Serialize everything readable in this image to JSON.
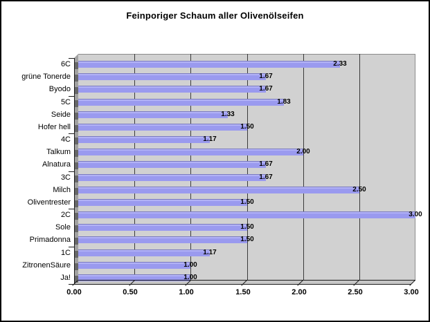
{
  "chart_data": {
    "type": "bar",
    "orientation": "horizontal",
    "style": "3d-excel",
    "title": "Feinporiger Schaum aller Olivenölseifen",
    "categories": [
      "6C",
      "grüne Tonerde",
      "Byodo",
      "5C",
      "Seide",
      "Hofer hell",
      "4C",
      "Talkum",
      "Alnatura",
      "3C",
      "Milch",
      "Oliventrester",
      "2C",
      "Sole",
      "Primadonna",
      "1C",
      "ZitronenSäure",
      "Ja!"
    ],
    "values": [
      2.33,
      1.67,
      1.67,
      1.83,
      1.33,
      1.5,
      1.17,
      2.0,
      1.67,
      1.67,
      2.5,
      1.5,
      3.0,
      1.5,
      1.5,
      1.17,
      1.0,
      1.0
    ],
    "value_labels": [
      "2.33",
      "1.67",
      "1.67",
      "1.83",
      "1.33",
      "1.50",
      "1.17",
      "2.00",
      "1.67",
      "1.67",
      "2.50",
      "1.50",
      "3.00",
      "1.50",
      "1.50",
      "1.17",
      "1.00",
      "1.00"
    ],
    "xlim": [
      0,
      3.0
    ],
    "x_ticks": [
      "0.00",
      "0.50",
      "1.00",
      "1.50",
      "2.00",
      "2.50",
      "3.00"
    ],
    "ylabel": "",
    "xlabel": "",
    "grid": true,
    "legend": false,
    "colors": {
      "bar_fill": "#9a9aef",
      "bar_top_edge": "#7a7ac0",
      "plot_background": "#d1d1d1",
      "side_wall": "#a2a2a2",
      "bar_shadow_notch": "#686868",
      "floor": "#c7c7c7",
      "gridline": "#3a3a3a",
      "axis": "#1a1a1a",
      "page_background": "#ffffff",
      "border": "#000000",
      "text": "#000000"
    }
  }
}
